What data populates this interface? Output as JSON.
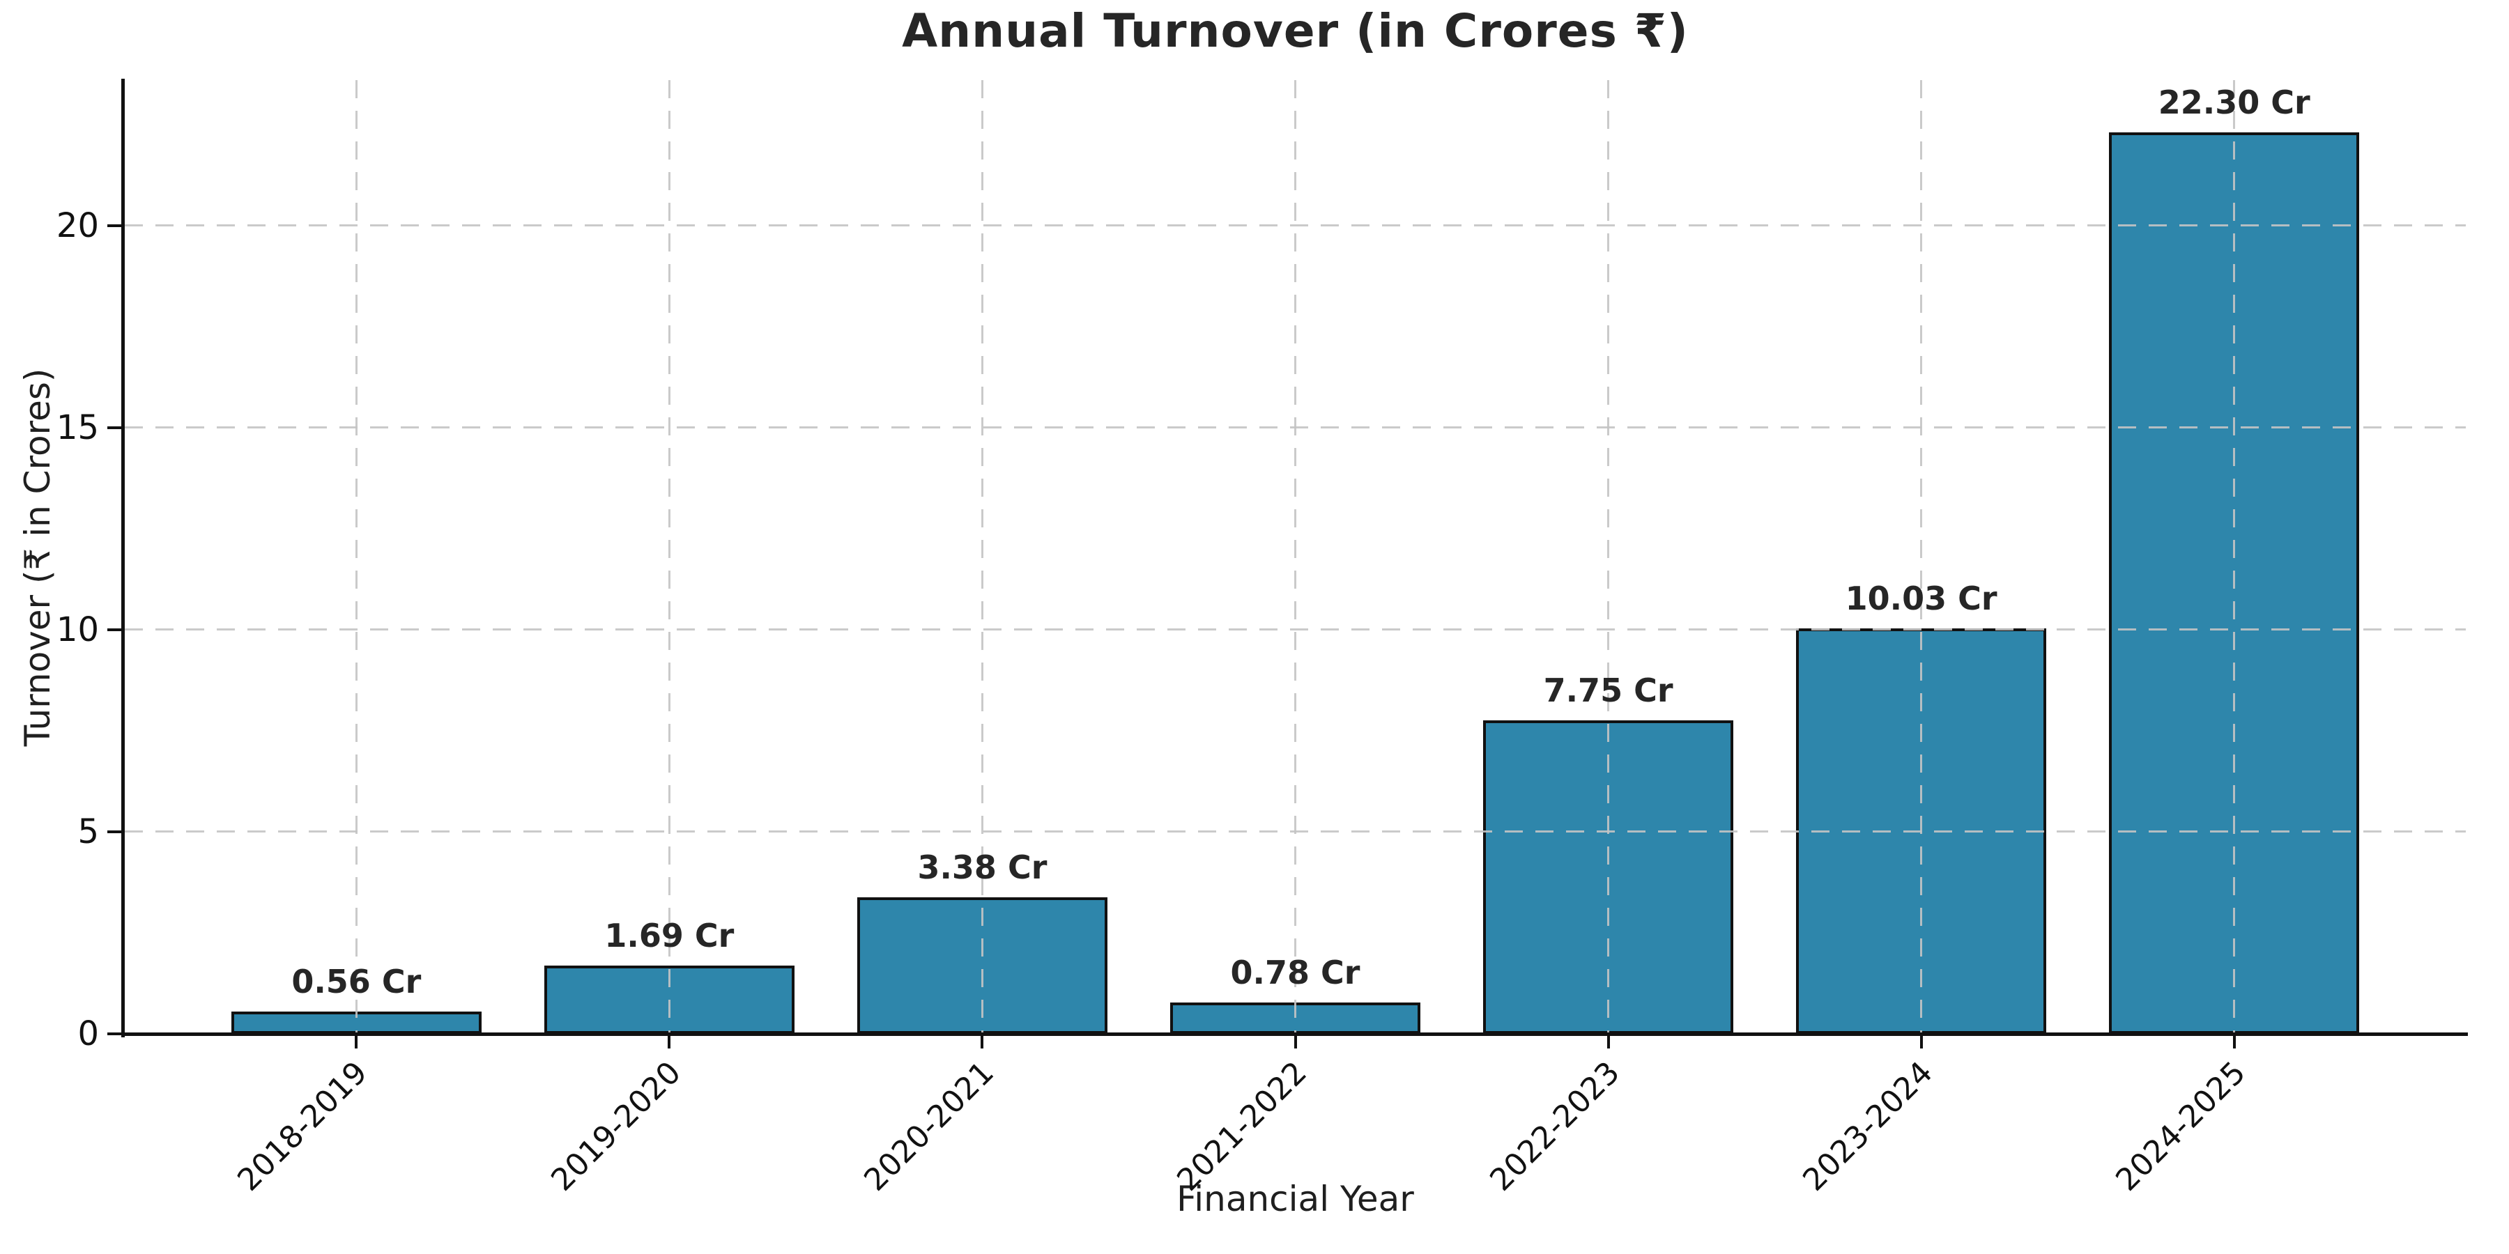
{
  "chart_data": {
    "type": "bar",
    "title": "Annual Turnover (in Crores ₹)",
    "xlabel": "Financial Year",
    "ylabel": "Turnover (₹ in Crores)",
    "categories": [
      "2018-2019",
      "2019-2020",
      "2020-2021",
      "2021-2022",
      "2022-2023",
      "2023-2024",
      "2024-2025"
    ],
    "values": [
      0.56,
      1.69,
      3.38,
      0.78,
      7.75,
      10.03,
      22.3
    ],
    "bar_labels": [
      "0.56 Cr",
      "1.69 Cr",
      "3.38 Cr",
      "0.78 Cr",
      "7.75 Cr",
      "10.03 Cr",
      "22.30 Cr"
    ],
    "yticks": [
      0,
      5,
      10,
      15,
      20
    ],
    "ytick_labels": [
      "0",
      "5",
      "10",
      "15",
      "20"
    ],
    "ylim": [
      0,
      23.6
    ],
    "grid": {
      "axis": "both",
      "style": "dashed",
      "color": "#c4c4c4"
    },
    "legend": "none",
    "bar_color": "#2E86AB",
    "bar_edge_color": "#111111",
    "text_color": "#1f1f1f",
    "background": "#ffffff"
  }
}
